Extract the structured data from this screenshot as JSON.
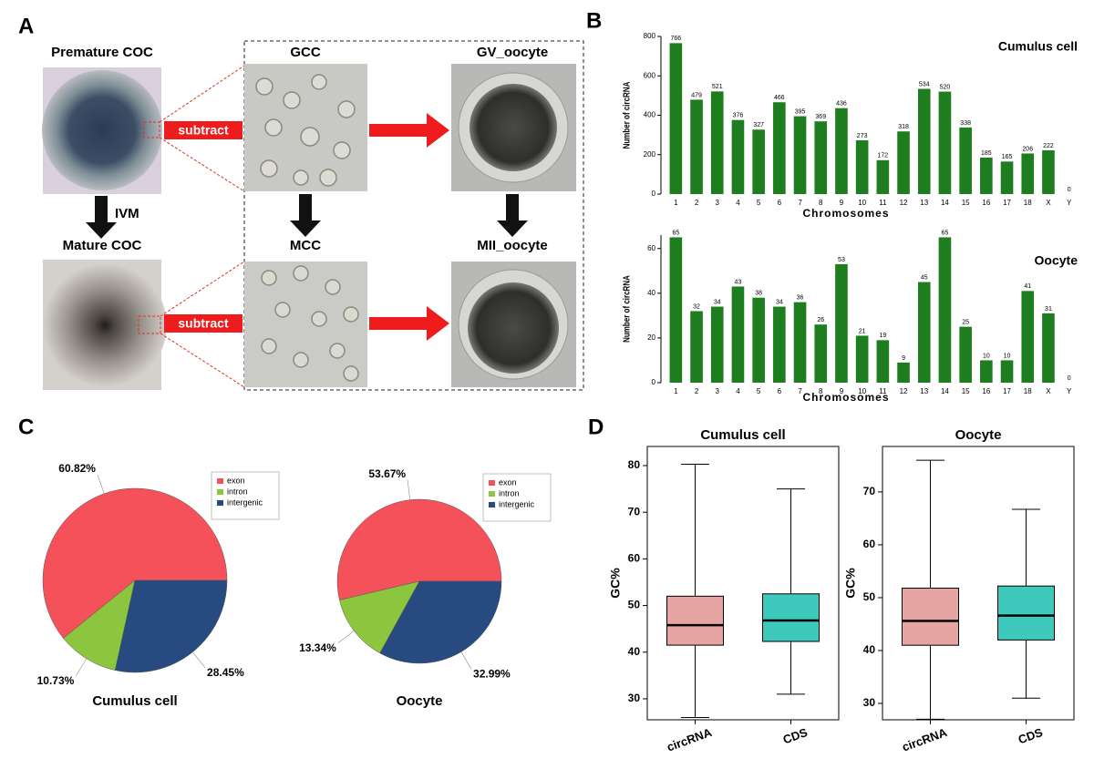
{
  "panel_labels": [
    "A",
    "B",
    "C",
    "D"
  ],
  "panel_a": {
    "premature": "Premature COC",
    "mature": "Mature COC",
    "ivm": "IVM",
    "gcc": "GCC",
    "mcc": "MCC",
    "gv": "GV_oocyte",
    "mii": "MII_oocyte",
    "subtract": [
      "subtract",
      "subtract"
    ]
  },
  "chart_data": [
    {
      "type": "bar",
      "title": "Cumulus cell",
      "xlabel": "Chromosomes",
      "ylabel": "Number of circRNA",
      "color": "#1e7d1e",
      "categories": [
        "1",
        "2",
        "3",
        "4",
        "5",
        "6",
        "7",
        "8",
        "9",
        "10",
        "11",
        "12",
        "13",
        "14",
        "15",
        "16",
        "17",
        "18",
        "X",
        "Y"
      ],
      "values": [
        766,
        479,
        521,
        376,
        327,
        466,
        395,
        369,
        436,
        273,
        172,
        318,
        534,
        520,
        338,
        185,
        165,
        206,
        222,
        0
      ],
      "ylim": [
        0,
        800
      ],
      "yticks": [
        0,
        200,
        400,
        600,
        800
      ]
    },
    {
      "type": "bar",
      "title": "Oocyte",
      "xlabel": "Chromosomes",
      "ylabel": "Number of circRNA",
      "color": "#1e7d1e",
      "categories": [
        "1",
        "2",
        "3",
        "4",
        "5",
        "6",
        "7",
        "8",
        "9",
        "10",
        "11",
        "12",
        "13",
        "14",
        "15",
        "16",
        "17",
        "18",
        "X",
        "Y"
      ],
      "values": [
        65,
        32,
        34,
        43,
        38,
        34,
        36,
        26,
        53,
        21,
        19,
        9,
        45,
        65,
        25,
        10,
        10,
        41,
        31,
        0
      ],
      "ylim": [
        0,
        66
      ],
      "yticks": [
        0,
        20,
        40,
        60
      ]
    },
    {
      "type": "pie",
      "title": "Cumulus cell",
      "categories": [
        "exon",
        "intron",
        "intergenic"
      ],
      "colors": [
        "#f4515a",
        "#8cc63e",
        "#274b80"
      ],
      "values": [
        60.82,
        10.73,
        28.45
      ],
      "value_labels": [
        "60.82%",
        "10.73%",
        "28.45%"
      ],
      "legend": "upper right"
    },
    {
      "type": "pie",
      "title": "Oocyte",
      "categories": [
        "exon",
        "intron",
        "intergenic"
      ],
      "colors": [
        "#f4515a",
        "#8cc63e",
        "#274b80"
      ],
      "values": [
        53.67,
        13.34,
        32.99
      ],
      "value_labels": [
        "53.67%",
        "13.34%",
        "32.99%"
      ],
      "legend": "upper right"
    },
    {
      "type": "box",
      "title": "Cumulus cell",
      "ylabel": "GC%",
      "ylim": [
        25.5,
        84.1
      ],
      "yticks": [
        30,
        40,
        50,
        60,
        70,
        80
      ],
      "boxes": [
        {
          "name": "circRNA",
          "color": "#e8a3a3",
          "whisker_low": 26,
          "q1": 41.5,
          "median": 45.8,
          "q3": 52,
          "whisker_high": 80.3
        },
        {
          "name": "CDS",
          "color": "#3ec9bd",
          "whisker_low": 31,
          "q1": 42.3,
          "median": 46.8,
          "q3": 52.5,
          "whisker_high": 75
        }
      ]
    },
    {
      "type": "box",
      "title": "Oocyte",
      "ylabel": "GC%",
      "ylim": [
        26.9,
        78.6
      ],
      "yticks": [
        30,
        40,
        50,
        60,
        70
      ],
      "boxes": [
        {
          "name": "circRNA",
          "color": "#e8a3a3",
          "whisker_low": 27,
          "q1": 41,
          "median": 45.6,
          "q3": 51.8,
          "whisker_high": 76
        },
        {
          "name": "CDS",
          "color": "#3ec9bd",
          "whisker_low": 31,
          "q1": 42,
          "median": 46.6,
          "q3": 52.2,
          "whisker_high": 66.7
        }
      ]
    }
  ]
}
